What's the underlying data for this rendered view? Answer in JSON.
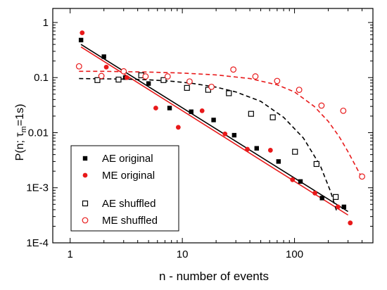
{
  "chart_data": {
    "type": "scatter",
    "xscale": "log",
    "yscale": "log",
    "xlabel": "n - number of events",
    "ylabel": {
      "prefix": "P(n; τ",
      "sub": "m",
      "suffix": "=1s)"
    },
    "xlim": [
      0.7,
      500
    ],
    "ylim": [
      0.0001,
      1.8
    ],
    "x_ticks": [
      {
        "v": 1,
        "label": "1"
      },
      {
        "v": 10,
        "label": "10"
      },
      {
        "v": 100,
        "label": "100"
      }
    ],
    "y_ticks": [
      {
        "v": 1,
        "label": "1"
      },
      {
        "v": 0.1,
        "label": "0.1"
      },
      {
        "v": 0.01,
        "label": "0.01"
      },
      {
        "v": 0.001,
        "label": "1E-3"
      },
      {
        "v": 0.0001,
        "label": "1E-4"
      }
    ],
    "grid": false,
    "legend_position": "bottom-left",
    "colors": {
      "ae": "#000000",
      "me": "#e8191a"
    },
    "series": [
      {
        "name": "AE original",
        "color": "#000000",
        "marker": "filled-square",
        "x": [
          1.25,
          2.0,
          3.1,
          5.0,
          7.7,
          12,
          19,
          29,
          46,
          72,
          113,
          176,
          276
        ],
        "y": [
          0.48,
          0.24,
          0.1,
          0.078,
          0.028,
          0.024,
          0.017,
          0.009,
          0.0052,
          0.003,
          0.0013,
          0.00065,
          0.00045
        ]
      },
      {
        "name": "ME original",
        "color": "#e8191a",
        "marker": "filled-circle",
        "x": [
          1.28,
          2.1,
          3.2,
          5.8,
          9.2,
          15,
          24,
          38,
          61,
          96,
          152,
          244,
          314
        ],
        "y": [
          0.65,
          0.155,
          0.1,
          0.028,
          0.0125,
          0.025,
          0.0095,
          0.005,
          0.0048,
          0.0014,
          0.0008,
          0.00045,
          0.00023
        ]
      },
      {
        "name": "AE shuffled",
        "color": "#000000",
        "marker": "open-square",
        "x": [
          1.75,
          2.7,
          4.3,
          6.8,
          11,
          17,
          26,
          41,
          64,
          101,
          157,
          233
        ],
        "y": [
          0.09,
          0.092,
          0.11,
          0.09,
          0.065,
          0.06,
          0.052,
          0.022,
          0.019,
          0.0045,
          0.0027,
          0.00068
        ]
      },
      {
        "name": "ME shuffled",
        "color": "#e8191a",
        "marker": "open-circle",
        "x": [
          1.2,
          1.9,
          3.0,
          4.7,
          7.4,
          11.6,
          18.2,
          28.5,
          44.8,
          70,
          110,
          174,
          272,
          400
        ],
        "y": [
          0.16,
          0.107,
          0.13,
          0.105,
          0.105,
          0.085,
          0.068,
          0.14,
          0.105,
          0.087,
          0.06,
          0.031,
          0.025,
          0.0016
        ]
      }
    ],
    "fits": [
      {
        "series": "AE original",
        "style": "solid",
        "color": "#000000",
        "x": [
          1.25,
          300
        ],
        "y": [
          0.4,
          0.00037
        ]
      },
      {
        "series": "ME original",
        "style": "solid",
        "color": "#e8191a",
        "x": [
          1.25,
          300
        ],
        "y": [
          0.36,
          0.00032
        ]
      },
      {
        "series": "AE shuffled",
        "style": "dashed",
        "color": "#000000",
        "x": [
          1.2,
          2,
          3,
          5,
          8,
          12,
          20,
          30,
          50,
          80,
          120,
          170,
          210,
          240
        ],
        "y": [
          0.096,
          0.095,
          0.094,
          0.091,
          0.086,
          0.079,
          0.067,
          0.055,
          0.037,
          0.019,
          0.008,
          0.0025,
          0.00085,
          0.00035
        ]
      },
      {
        "series": "ME shuffled",
        "style": "dashed",
        "color": "#e8191a",
        "x": [
          1.2,
          2,
          3,
          5,
          10,
          20,
          40,
          70,
          100,
          150,
          200,
          250,
          300,
          350,
          400
        ],
        "y": [
          0.13,
          0.13,
          0.128,
          0.126,
          0.121,
          0.112,
          0.096,
          0.074,
          0.055,
          0.03,
          0.016,
          0.0085,
          0.0045,
          0.0025,
          0.0015
        ]
      }
    ],
    "legend": [
      {
        "label": "AE original",
        "marker": "filled-square",
        "color": "#000000"
      },
      {
        "label": "ME original",
        "marker": "filled-circle",
        "color": "#e8191a"
      },
      {
        "label": "AE shuffled",
        "marker": "open-square",
        "color": "#000000"
      },
      {
        "label": "ME shuffled",
        "marker": "open-circle",
        "color": "#e8191a"
      }
    ]
  }
}
